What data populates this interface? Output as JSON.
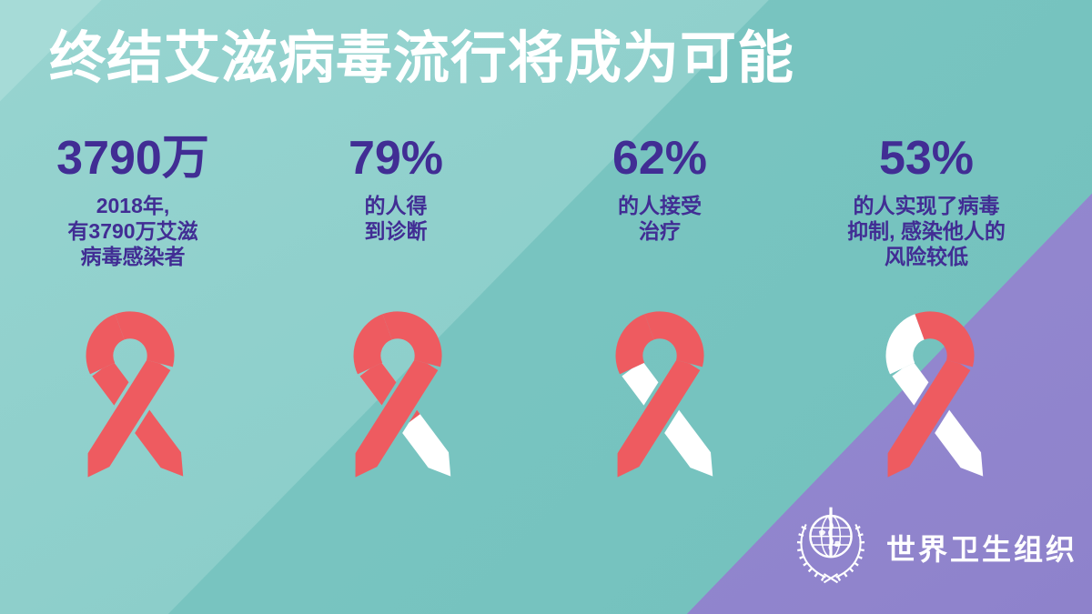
{
  "title": "终结艾滋病毒流行将成为可能",
  "stats": [
    {
      "value": "3790万",
      "lines": [
        "2018年,",
        "有3790万艾滋",
        "病毒感染者"
      ]
    },
    {
      "value": "79%",
      "lines": [
        "的人得",
        "到诊断"
      ]
    },
    {
      "value": "62%",
      "lines": [
        "的人接受",
        "治疗"
      ]
    },
    {
      "value": "53%",
      "lines": [
        "的人实现了病毒",
        "抑制, 感染他人的",
        "风险较低"
      ]
    }
  ],
  "ribbons": [
    {
      "name": "ribbon-total-infected",
      "segments": {
        "arc_left": "red",
        "arc_right": "red",
        "back_strip": "red",
        "back_overlay": "red",
        "front_strip": "red"
      }
    },
    {
      "name": "ribbon-79-diagnosed",
      "segments": {
        "arc_left": "red",
        "arc_right": "red",
        "back_strip": "white",
        "back_overlay": "red",
        "front_strip": "red"
      }
    },
    {
      "name": "ribbon-62-treated",
      "segments": {
        "arc_left": "red",
        "arc_right": "red",
        "back_strip": "white",
        "back_overlay": null,
        "front_strip": "red"
      }
    },
    {
      "name": "ribbon-53-suppressed",
      "segments": {
        "arc_left": "white",
        "arc_right": "red",
        "back_strip": "white",
        "back_overlay": null,
        "front_strip": "red"
      }
    }
  ],
  "footer": {
    "org_name": "世界卫生组织",
    "logo_icon": "who-emblem"
  },
  "colors": {
    "ribbon_red": "#ee5b60",
    "ribbon_white": "#ffffff",
    "stat_text": "#412d94",
    "title_text": "#ffffff",
    "bg_teal_light": "#8fd0cc",
    "bg_teal_dark": "#77c4c0",
    "bg_corner_sheen": "#a6dbd7",
    "bg_purple": "#968bd1"
  }
}
